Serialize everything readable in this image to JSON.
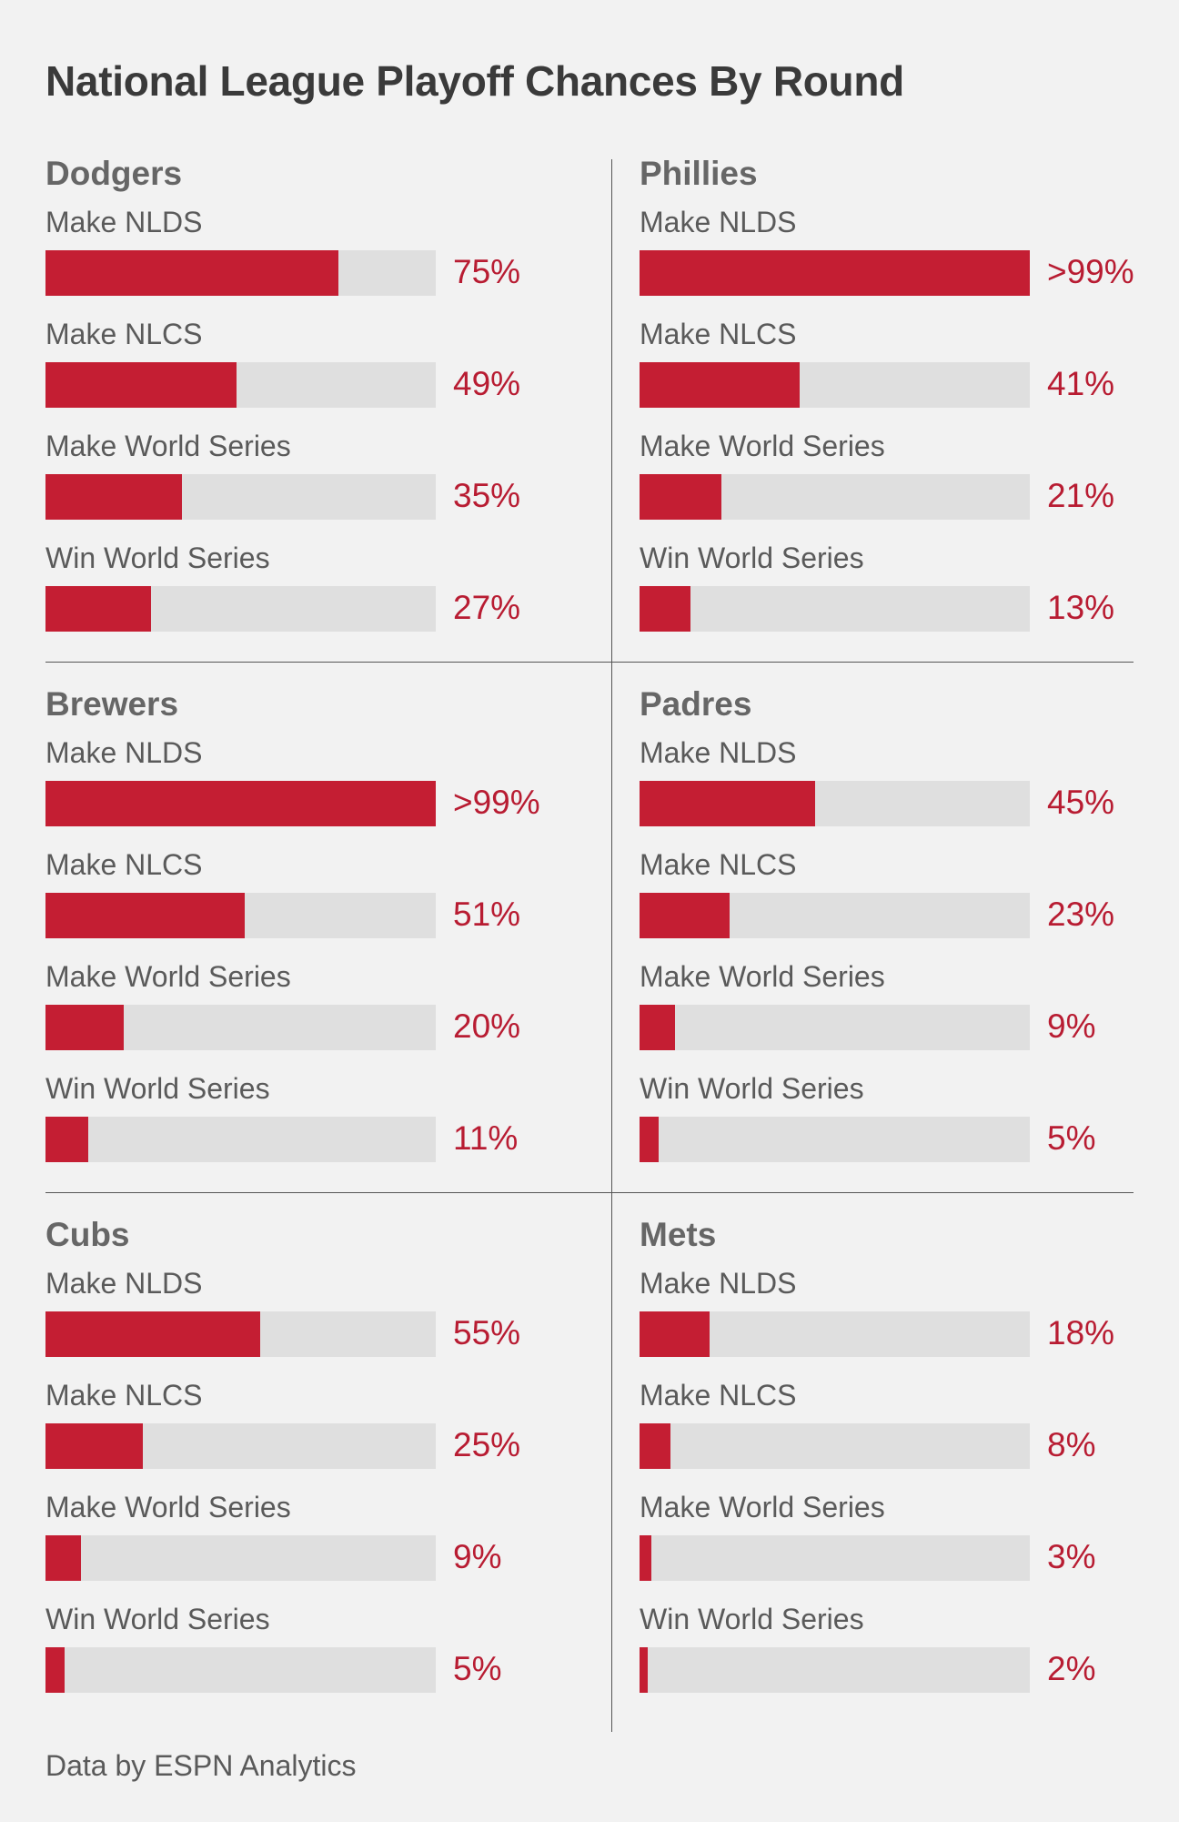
{
  "chart_data": {
    "type": "bar",
    "title": "National League Playoff Chances By Round",
    "source": "Data by ESPN Analytics",
    "xlim": [
      0,
      100
    ],
    "colors": {
      "fill": "#c41e33",
      "track": "#dfdfdf",
      "value_text": "#b81c32"
    },
    "rounds": [
      "Make NLDS",
      "Make NLCS",
      "Make World Series",
      "Win World Series"
    ],
    "teams": [
      {
        "name": "Dodgers",
        "values": [
          75,
          49,
          35,
          27
        ],
        "labels": [
          "75%",
          "49%",
          "35%",
          "27%"
        ]
      },
      {
        "name": "Phillies",
        "values": [
          100,
          41,
          21,
          13
        ],
        "labels": [
          ">99%",
          "41%",
          "21%",
          "13%"
        ]
      },
      {
        "name": "Brewers",
        "values": [
          100,
          51,
          20,
          11
        ],
        "labels": [
          ">99%",
          "51%",
          "20%",
          "11%"
        ]
      },
      {
        "name": "Padres",
        "values": [
          45,
          23,
          9,
          5
        ],
        "labels": [
          "45%",
          "23%",
          "9%",
          "5%"
        ]
      },
      {
        "name": "Cubs",
        "values": [
          55,
          25,
          9,
          5
        ],
        "labels": [
          "55%",
          "25%",
          "9%",
          "5%"
        ]
      },
      {
        "name": "Mets",
        "values": [
          18,
          8,
          3,
          2
        ],
        "labels": [
          "18%",
          "8%",
          "3%",
          "2%"
        ]
      }
    ]
  }
}
